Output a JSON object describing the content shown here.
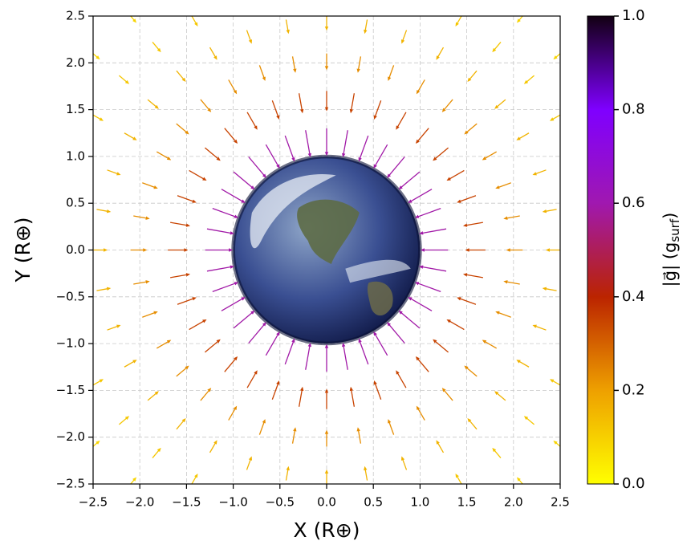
{
  "chart_data": {
    "type": "quiver",
    "x_label": "X (R⊕)",
    "y_label": "Y (R⊕)",
    "colorbar_label": [
      "|g⃗| (g",
      "surf",
      ")"
    ],
    "xlim": [
      -2.5,
      2.5
    ],
    "ylim": [
      -2.5,
      2.5
    ],
    "xticks": [
      {
        "value": -2.5,
        "label": "−2.5"
      },
      {
        "value": -2.0,
        "label": "−2.0"
      },
      {
        "value": -1.5,
        "label": "−1.5"
      },
      {
        "value": -1.0,
        "label": "−1.0"
      },
      {
        "value": -0.5,
        "label": "−0.5"
      },
      {
        "value": 0,
        "label": "0.0"
      },
      0.5,
      {
        "value": 1,
        "label": "1.0"
      },
      1.5,
      {
        "value": 2,
        "label": "2.0"
      },
      2.5
    ],
    "yticks": [
      {
        "value": -2.5,
        "label": "−2.5"
      },
      {
        "value": -2.0,
        "label": "−2.0"
      },
      {
        "value": -1.5,
        "label": "−1.5"
      },
      {
        "value": -1.0,
        "label": "−1.0"
      },
      {
        "value": -0.5,
        "label": "−0.5"
      },
      {
        "value": 0,
        "label": "0.0"
      },
      0.5,
      {
        "value": 1,
        "label": "1.0"
      },
      1.5,
      {
        "value": 2,
        "label": "2.0"
      },
      2.5
    ],
    "clim": [
      0,
      1
    ],
    "cticks": [
      {
        "value": 0,
        "label": "0.0"
      },
      0.2,
      0.4,
      0.6,
      0.8,
      {
        "value": 1,
        "label": "1.0"
      }
    ],
    "colormap": [
      "#ffff00",
      "#eea000",
      "#bb2400",
      "#a018b0",
      "#7f00ff",
      "#120012"
    ],
    "grid": true,
    "earth_radius": 1,
    "radii": [
      1.3,
      1.7,
      2.1,
      2.5,
      2.9,
      3.3
    ],
    "magnitudes": [
      0.59,
      0.35,
      0.23,
      0.16,
      0.12,
      0.09
    ],
    "angles": [
      0,
      10,
      20,
      30,
      40,
      50,
      60,
      70,
      80,
      90,
      100,
      110,
      120,
      130,
      140,
      150,
      160,
      170,
      180,
      190,
      200,
      210,
      220,
      230,
      240,
      250,
      260,
      270,
      280,
      290,
      300,
      310,
      320,
      330,
      340,
      350
    ]
  }
}
